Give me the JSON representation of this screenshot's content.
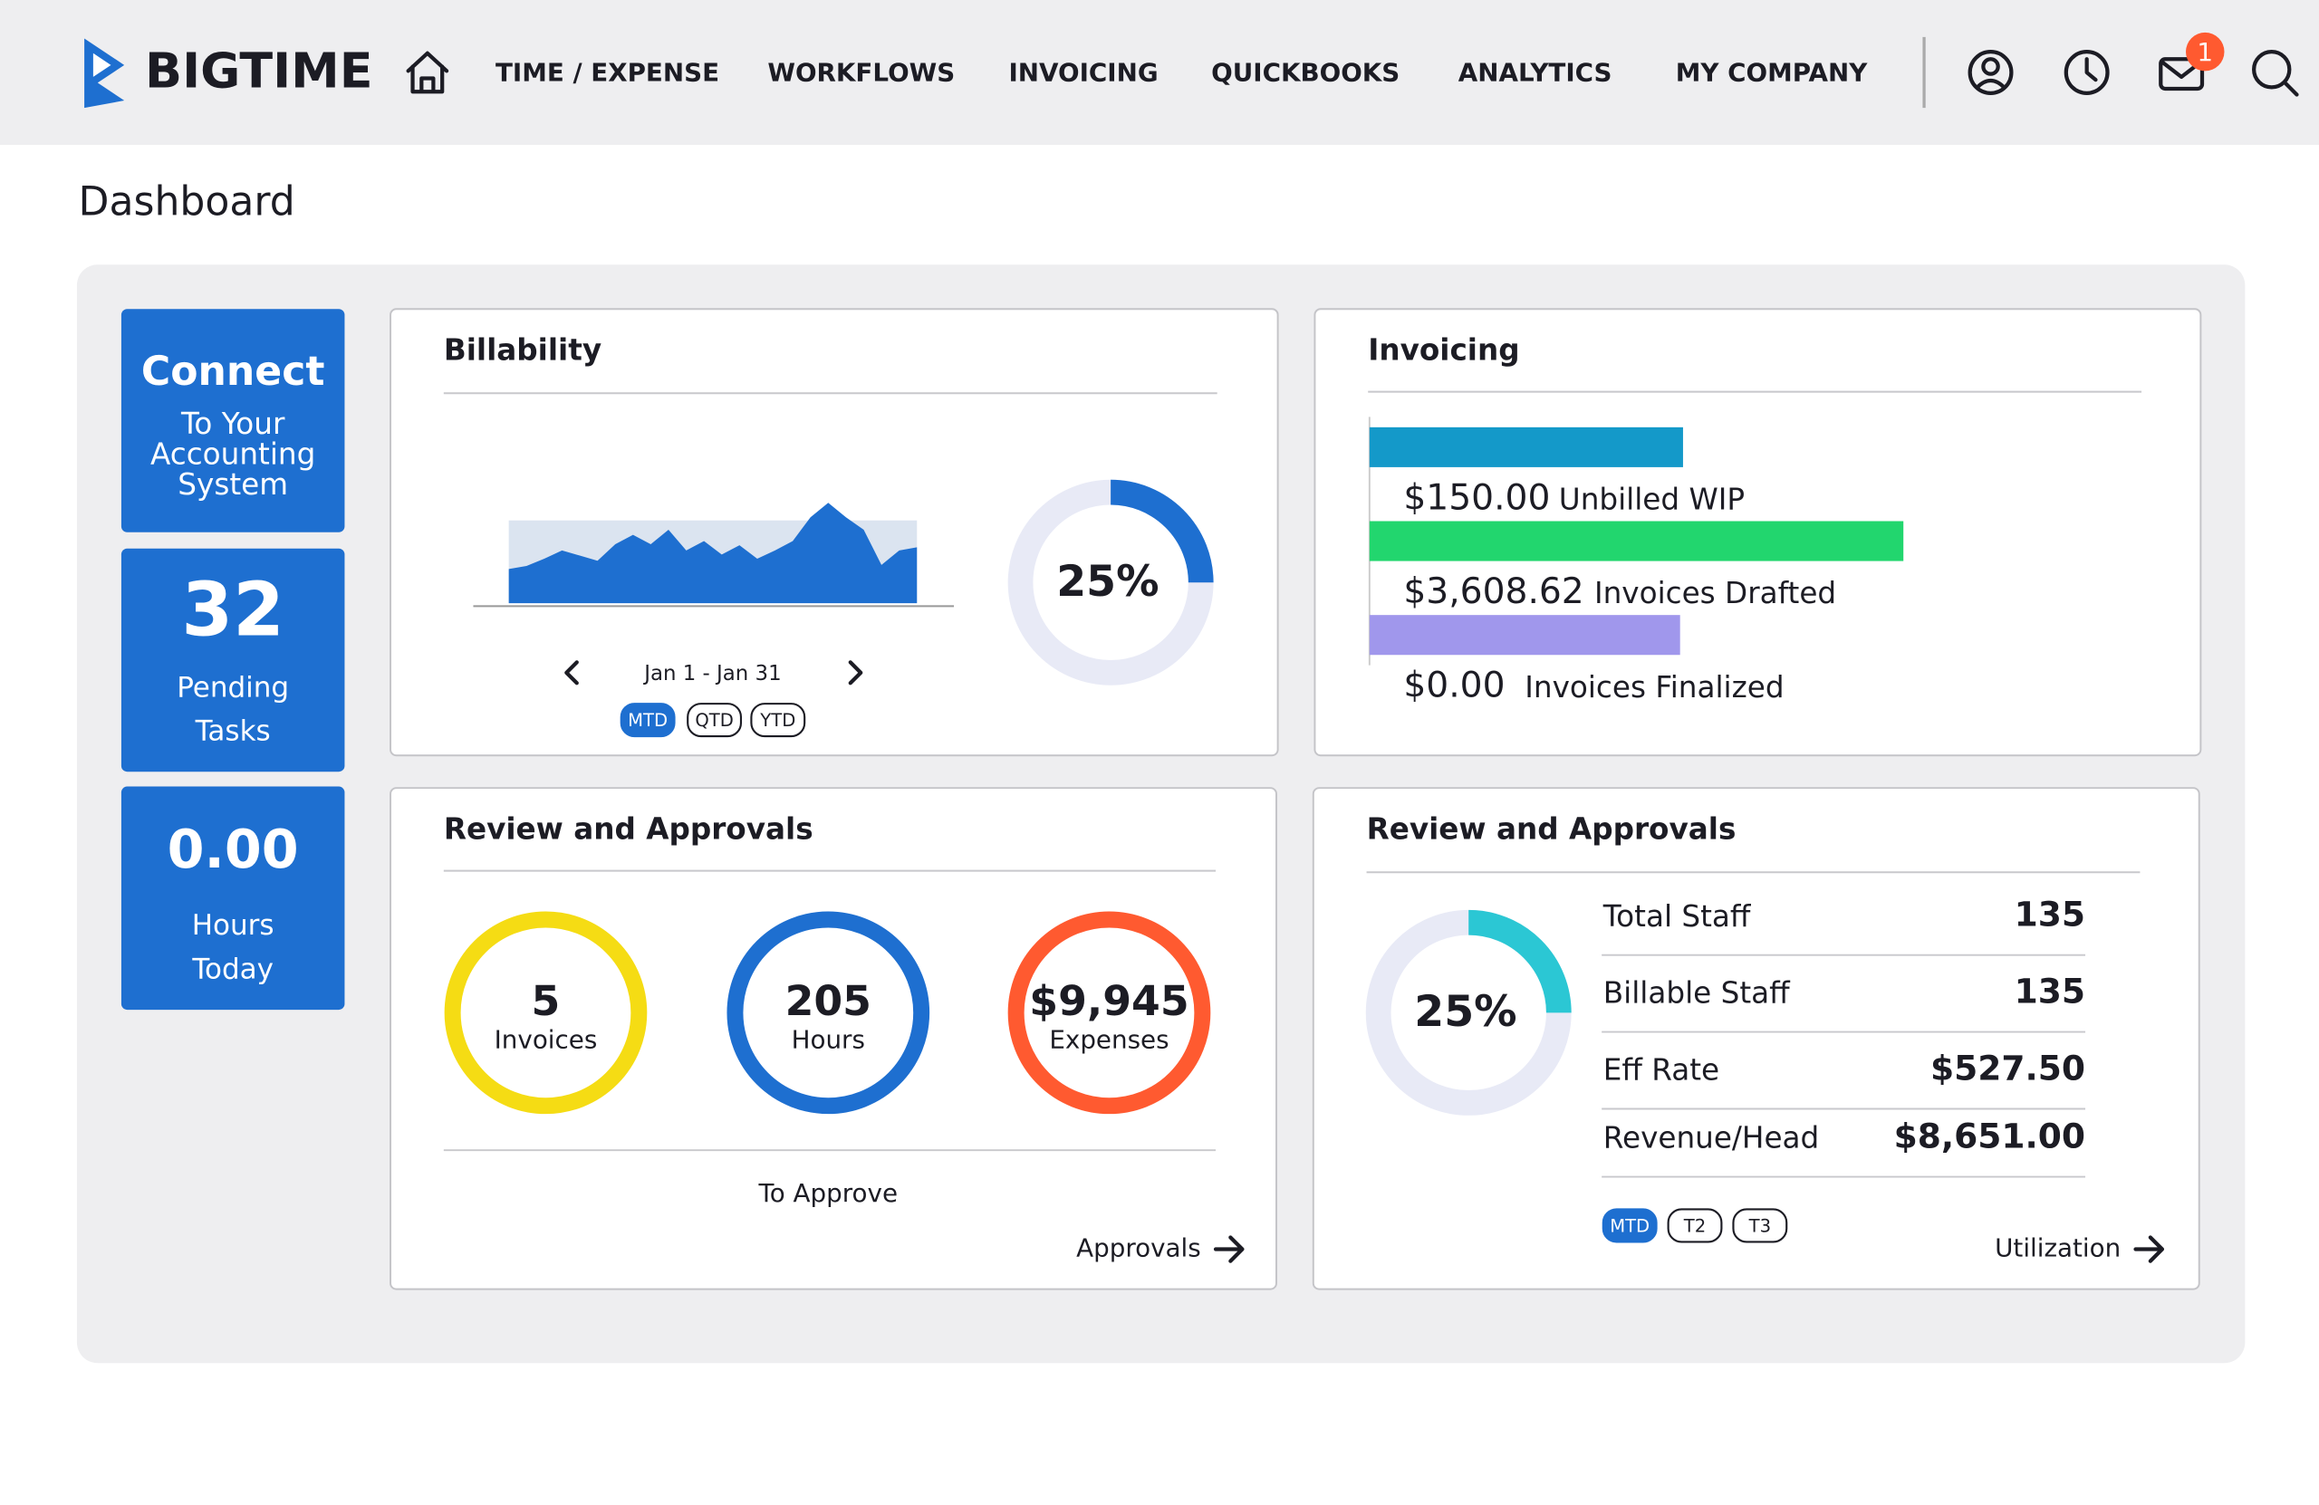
{
  "header": {
    "logo": "BIGTIME",
    "nav": [
      "TIME / EXPENSE",
      "WORKFLOWS",
      "INVOICING",
      "QUICKBOOKS",
      "ANALYTICS",
      "MY COMPANY"
    ],
    "notification_count": 1
  },
  "page_title": "Dashboard",
  "tiles": [
    {
      "title": "Connect",
      "lines": [
        "To Your",
        "Accounting",
        "System"
      ]
    },
    {
      "title": 32,
      "lines": [
        "Pending",
        "Tasks"
      ]
    },
    {
      "title": "0.00",
      "lines": [
        "Hours",
        "Today"
      ]
    }
  ],
  "billability": {
    "title": "Billability",
    "sparkline": {
      "values": [
        33,
        36,
        43,
        51,
        46,
        41,
        57,
        66,
        57,
        71,
        51,
        60,
        47,
        56,
        43,
        51,
        60,
        83,
        97,
        83,
        71,
        37,
        51,
        54
      ],
      "ylim": [
        0,
        100
      ]
    },
    "date_range": "Jan 1 -  Jan 31",
    "periods": [
      "MTD",
      "QTD",
      "YTD"
    ],
    "donut": {
      "value": 25,
      "label": "25%"
    }
  },
  "invoicing": {
    "title": "Invoicing",
    "items": [
      {
        "amount": "$150.00",
        "label": "Unbilled WIP",
        "color": "#1499c9"
      },
      {
        "amount": "$3,608.62",
        "label": "Invoices Drafted",
        "color": "#22d66e"
      },
      {
        "amount": "$0.00",
        "label": "Invoices Finalized",
        "color": "#a097ec"
      }
    ]
  },
  "approvals": {
    "title": "Review and Approvals",
    "items": [
      {
        "value": 5,
        "label": "Invoices",
        "color": "#f5dc14"
      },
      {
        "value": 205,
        "label": "Hours",
        "color": "#1e6fd0"
      },
      {
        "value": "$9,945",
        "label": "Expenses",
        "color": "#ff5a30"
      }
    ],
    "footer": "To Approve",
    "link": "Approvals"
  },
  "utilization": {
    "title": "Review and Approvals",
    "donut": {
      "value": 25,
      "label": "25%",
      "color": "#2bc7d4"
    },
    "rows": [
      {
        "label": "Total Staff",
        "value": 135
      },
      {
        "label": "Billable Staff",
        "value": 135
      },
      {
        "label": "Eff Rate",
        "value": "$527.50"
      },
      {
        "label": "Revenue/Head",
        "value": "$8,651.00"
      }
    ],
    "periods": [
      "MTD",
      "T2",
      "T3"
    ],
    "link": "Utilization"
  }
}
